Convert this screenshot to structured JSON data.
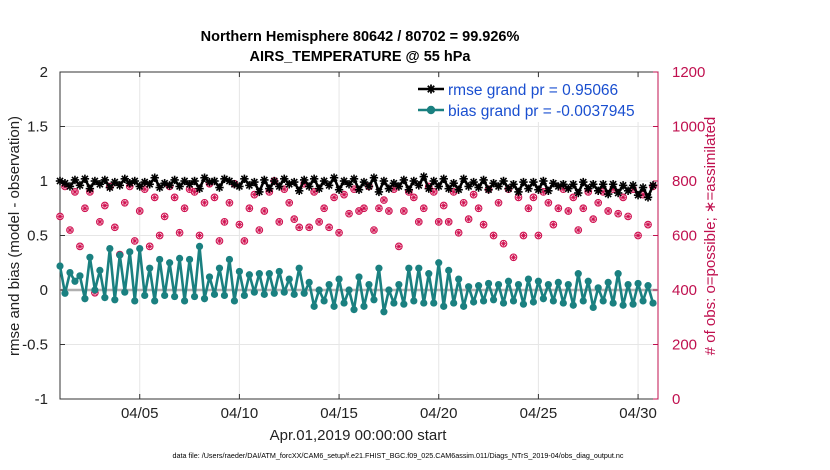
{
  "chart_data": {
    "type": "line",
    "title": "Northern Hemisphere 80642 / 80702 = 99.926%",
    "subtitle": "AIRS_TEMPERATURE @ 55 hPa",
    "xlabel": "Apr.01,2019 00:00:00 start",
    "ylabel": "rmse and bias (model - observation)",
    "y2label": "# of obs: o=possible; ∗=assimilated",
    "footer": "data file: /Users/raeder/DAI/ATM_forcXX/CAM6_setup/f.e21.FHIST_BGC.f09_025.CAM6assim.011/Diags_NTrS_2019-04/obs_diag_output.nc",
    "ylim": [
      -1,
      2
    ],
    "y2lim": [
      0,
      1200
    ],
    "xlim": [
      1.0,
      31.0
    ],
    "x_ticks": [
      5,
      10,
      15,
      20,
      25,
      30
    ],
    "x_tick_labels": [
      "04/05",
      "04/10",
      "04/15",
      "04/20",
      "04/25",
      "04/30"
    ],
    "y_ticks": [
      -1,
      -0.5,
      0,
      0.5,
      1,
      1.5,
      2
    ],
    "y_tick_labels": [
      "-1",
      "-0.5",
      "0",
      "0.5",
      "1",
      "1.5",
      "2"
    ],
    "y2_ticks": [
      0,
      200,
      400,
      600,
      800,
      1000,
      1200
    ],
    "y2_tick_labels": [
      "0",
      "200",
      "400",
      "600",
      "800",
      "1000",
      "1200"
    ],
    "grid": true,
    "legend_position": "top-right",
    "series": [
      {
        "name": "rmse",
        "label": "rmse grand pr = 0.95066",
        "color": "#000000",
        "marker": "star",
        "axis": "left",
        "x": [
          1.0,
          1.25,
          1.5,
          1.75,
          2.0,
          2.25,
          2.5,
          2.75,
          3.0,
          3.25,
          3.5,
          3.75,
          4.0,
          4.25,
          4.5,
          4.75,
          5.0,
          5.25,
          5.5,
          5.75,
          6.0,
          6.25,
          6.5,
          6.75,
          7.0,
          7.25,
          7.5,
          7.75,
          8.0,
          8.25,
          8.5,
          8.75,
          9.0,
          9.25,
          9.5,
          9.75,
          10.0,
          10.25,
          10.5,
          10.75,
          11.0,
          11.25,
          11.5,
          11.75,
          12.0,
          12.25,
          12.5,
          12.75,
          13.0,
          13.25,
          13.5,
          13.75,
          14.0,
          14.25,
          14.5,
          14.75,
          15.0,
          15.25,
          15.5,
          15.75,
          16.0,
          16.25,
          16.5,
          16.75,
          17.0,
          17.25,
          17.5,
          17.75,
          18.0,
          18.25,
          18.5,
          18.75,
          19.0,
          19.25,
          19.5,
          19.75,
          20.0,
          20.25,
          20.5,
          20.75,
          21.0,
          21.25,
          21.5,
          21.75,
          22.0,
          22.25,
          22.5,
          22.75,
          23.0,
          23.25,
          23.5,
          23.75,
          24.0,
          24.25,
          24.5,
          24.75,
          25.0,
          25.25,
          25.5,
          25.75,
          26.0,
          26.25,
          26.5,
          26.75,
          27.0,
          27.25,
          27.5,
          27.75,
          28.0,
          28.25,
          28.5,
          28.75,
          29.0,
          29.25,
          29.5,
          29.75,
          30.0,
          30.25,
          30.5,
          30.75
        ],
        "values": [
          1.0,
          0.98,
          0.95,
          1.01,
          0.96,
          1.02,
          0.93,
          1.0,
          0.97,
          1.01,
          0.94,
          0.99,
          0.96,
          1.02,
          0.98,
          1.0,
          0.95,
          0.99,
          0.97,
          1.03,
          0.94,
          0.98,
          0.96,
          1.01,
          0.95,
          1.0,
          0.97,
          1.0,
          0.93,
          1.03,
          0.99,
          1.0,
          0.94,
          1.02,
          1.0,
          0.97,
          0.95,
          1.02,
          0.96,
          0.99,
          0.9,
          1.01,
          0.93,
          1.0,
          0.95,
          1.02,
          0.97,
          0.99,
          0.91,
          1.01,
          0.95,
          1.02,
          0.93,
          1.0,
          0.96,
          1.03,
          0.92,
          1.0,
          0.97,
          1.02,
          0.92,
          0.99,
          0.95,
          1.03,
          0.9,
          1.0,
          0.93,
          0.98,
          0.95,
          1.01,
          0.92,
          1.0,
          0.96,
          1.04,
          0.93,
          1.0,
          0.95,
          1.02,
          0.93,
          0.98,
          0.92,
          1.02,
          0.95,
          0.99,
          0.94,
          1.01,
          0.92,
          0.98,
          0.95,
          1.0,
          0.93,
          0.97,
          0.9,
          0.99,
          0.93,
          0.99,
          0.92,
          1.0,
          0.91,
          0.98,
          0.95,
          0.97,
          0.93,
          0.97,
          0.89,
          0.99,
          0.93,
          0.97,
          0.91,
          0.97,
          0.88,
          0.97,
          0.89,
          0.96,
          0.91,
          0.96,
          0.87,
          0.94,
          0.85,
          0.96
        ]
      },
      {
        "name": "bias",
        "label": "bias grand pr = -0.0037945",
        "color": "#1a8080",
        "marker": "circle",
        "axis": "left",
        "x": [
          1.0,
          1.25,
          1.5,
          1.75,
          2.0,
          2.25,
          2.5,
          2.75,
          3.0,
          3.25,
          3.5,
          3.75,
          4.0,
          4.25,
          4.5,
          4.75,
          5.0,
          5.25,
          5.5,
          5.75,
          6.0,
          6.25,
          6.5,
          6.75,
          7.0,
          7.25,
          7.5,
          7.75,
          8.0,
          8.25,
          8.5,
          8.75,
          9.0,
          9.25,
          9.5,
          9.75,
          10.0,
          10.25,
          10.5,
          10.75,
          11.0,
          11.25,
          11.5,
          11.75,
          12.0,
          12.25,
          12.5,
          12.75,
          13.0,
          13.25,
          13.5,
          13.75,
          14.0,
          14.25,
          14.5,
          14.75,
          15.0,
          15.25,
          15.5,
          15.75,
          16.0,
          16.25,
          16.5,
          16.75,
          17.0,
          17.25,
          17.5,
          17.75,
          18.0,
          18.25,
          18.5,
          18.75,
          19.0,
          19.25,
          19.5,
          19.75,
          20.0,
          20.25,
          20.5,
          20.75,
          21.0,
          21.25,
          21.5,
          21.75,
          22.0,
          22.25,
          22.5,
          22.75,
          23.0,
          23.25,
          23.5,
          23.75,
          24.0,
          24.25,
          24.5,
          24.75,
          25.0,
          25.25,
          25.5,
          25.75,
          26.0,
          26.25,
          26.5,
          26.75,
          27.0,
          27.25,
          27.5,
          27.75,
          28.0,
          28.25,
          28.5,
          28.75,
          29.0,
          29.25,
          29.5,
          29.75,
          30.0,
          30.25,
          30.5,
          30.75
        ],
        "values": [
          0.22,
          -0.03,
          0.16,
          0.08,
          0.13,
          -0.08,
          0.3,
          0.0,
          0.18,
          -0.07,
          0.38,
          -0.09,
          0.32,
          -0.02,
          0.35,
          -0.1,
          0.38,
          -0.05,
          0.2,
          -0.1,
          0.28,
          -0.05,
          0.25,
          -0.06,
          0.29,
          -0.1,
          0.28,
          -0.06,
          0.4,
          -0.08,
          0.12,
          -0.04,
          0.2,
          -0.05,
          0.28,
          -0.1,
          0.17,
          -0.05,
          0.14,
          -0.02,
          0.15,
          -0.04,
          0.15,
          -0.03,
          0.17,
          -0.02,
          0.1,
          -0.04,
          0.2,
          -0.03,
          0.07,
          -0.15,
          0.0,
          -0.1,
          0.05,
          -0.15,
          0.1,
          -0.12,
          0.0,
          -0.18,
          0.12,
          -0.15,
          0.05,
          -0.09,
          0.2,
          -0.2,
          0.0,
          -0.12,
          0.05,
          -0.13,
          0.2,
          -0.1,
          0.2,
          -0.12,
          0.15,
          -0.12,
          0.25,
          -0.15,
          0.18,
          -0.12,
          0.1,
          -0.15,
          0.03,
          -0.11,
          0.04,
          -0.1,
          0.06,
          -0.09,
          0.05,
          -0.12,
          0.08,
          -0.1,
          0.05,
          -0.13,
          0.1,
          -0.11,
          0.08,
          -0.08,
          0.05,
          -0.1,
          0.07,
          -0.12,
          0.05,
          -0.14,
          0.15,
          -0.1,
          0.08,
          -0.16,
          0.02,
          -0.1,
          0.07,
          -0.12,
          0.15,
          -0.14,
          0.05,
          -0.13,
          0.06,
          -0.1,
          0.04,
          -0.12
        ]
      },
      {
        "name": "possible",
        "label": "# possible obs",
        "color": "#d01050",
        "marker": "circle-open",
        "axis": "right",
        "x": [
          1.0,
          1.25,
          1.5,
          1.75,
          2.0,
          2.25,
          2.5,
          2.75,
          3.0,
          3.25,
          3.5,
          3.75,
          4.0,
          4.25,
          4.5,
          4.75,
          5.0,
          5.25,
          5.5,
          5.75,
          6.0,
          6.25,
          6.5,
          6.75,
          7.0,
          7.25,
          7.5,
          7.75,
          8.0,
          8.25,
          8.5,
          8.75,
          9.0,
          9.25,
          9.5,
          9.75,
          10.0,
          10.25,
          10.5,
          10.75,
          11.0,
          11.25,
          11.5,
          11.75,
          12.0,
          12.25,
          12.5,
          12.75,
          13.0,
          13.25,
          13.5,
          13.75,
          14.0,
          14.25,
          14.5,
          14.75,
          15.0,
          15.25,
          15.5,
          15.75,
          16.0,
          16.25,
          16.5,
          16.75,
          17.0,
          17.25,
          17.5,
          17.75,
          18.0,
          18.25,
          18.5,
          18.75,
          19.0,
          19.25,
          19.5,
          19.75,
          20.0,
          20.25,
          20.5,
          20.75,
          21.0,
          21.25,
          21.5,
          21.75,
          22.0,
          22.25,
          22.5,
          22.75,
          23.0,
          23.25,
          23.5,
          23.75,
          24.0,
          24.25,
          24.5,
          24.75,
          25.0,
          25.25,
          25.5,
          25.75,
          26.0,
          26.25,
          26.5,
          26.75,
          27.0,
          27.25,
          27.5,
          27.75,
          28.0,
          28.25,
          28.5,
          28.75,
          29.0,
          29.25,
          29.5,
          29.75,
          30.0,
          30.25,
          30.5,
          30.75
        ],
        "values": [
          670,
          780,
          620,
          760,
          560,
          700,
          760,
          390,
          650,
          710,
          780,
          630,
          530,
          720,
          780,
          580,
          690,
          770,
          560,
          740,
          600,
          670,
          780,
          740,
          610,
          700,
          770,
          760,
          600,
          720,
          790,
          740,
          580,
          650,
          720,
          790,
          640,
          580,
          700,
          750,
          620,
          690,
          760,
          800,
          650,
          770,
          720,
          660,
          630,
          790,
          630,
          760,
          650,
          700,
          630,
          740,
          610,
          750,
          680,
          770,
          690,
          700,
          780,
          620,
          700,
          730,
          690,
          770,
          560,
          690,
          760,
          740,
          650,
          700,
          780,
          760,
          650,
          710,
          650,
          760,
          610,
          720,
          660,
          750,
          700,
          640,
          770,
          600,
          720,
          570,
          770,
          520,
          740,
          600,
          700,
          740,
          600,
          760,
          720,
          640,
          700,
          770,
          690,
          740,
          620,
          700,
          760,
          660,
          720,
          760,
          690,
          770,
          680,
          740,
          670,
          770,
          600,
          750,
          640,
          780
        ]
      },
      {
        "name": "assimilated",
        "label": "# assimilated obs",
        "color": "#d01050",
        "marker": "star-small",
        "axis": "right",
        "x": [
          1.0,
          1.25,
          1.5,
          1.75,
          2.0,
          2.25,
          2.5,
          2.75,
          3.0,
          3.25,
          3.5,
          3.75,
          4.0,
          4.25,
          4.5,
          4.75,
          5.0,
          5.25,
          5.5,
          5.75,
          6.0,
          6.25,
          6.5,
          6.75,
          7.0,
          7.25,
          7.5,
          7.75,
          8.0,
          8.25,
          8.5,
          8.75,
          9.0,
          9.25,
          9.5,
          9.75,
          10.0,
          10.25,
          10.5,
          10.75,
          11.0,
          11.25,
          11.5,
          11.75,
          12.0,
          12.25,
          12.5,
          12.75,
          13.0,
          13.25,
          13.5,
          13.75,
          14.0,
          14.25,
          14.5,
          14.75,
          15.0,
          15.25,
          15.5,
          15.75,
          16.0,
          16.25,
          16.5,
          16.75,
          17.0,
          17.25,
          17.5,
          17.75,
          18.0,
          18.25,
          18.5,
          18.75,
          19.0,
          19.25,
          19.5,
          19.75,
          20.0,
          20.25,
          20.5,
          20.75,
          21.0,
          21.25,
          21.5,
          21.75,
          22.0,
          22.25,
          22.5,
          22.75,
          23.0,
          23.25,
          23.5,
          23.75,
          24.0,
          24.25,
          24.5,
          24.75,
          25.0,
          25.25,
          25.5,
          25.75,
          26.0,
          26.25,
          26.5,
          26.75,
          27.0,
          27.25,
          27.5,
          27.75,
          28.0,
          28.25,
          28.5,
          28.75,
          29.0,
          29.25,
          29.5,
          29.75,
          30.0,
          30.25,
          30.5,
          30.75
        ],
        "values": [
          670,
          780,
          620,
          760,
          560,
          700,
          760,
          390,
          650,
          710,
          780,
          630,
          530,
          720,
          780,
          580,
          690,
          770,
          560,
          740,
          600,
          670,
          780,
          740,
          610,
          700,
          770,
          760,
          600,
          720,
          790,
          740,
          580,
          650,
          720,
          790,
          640,
          580,
          700,
          750,
          620,
          690,
          760,
          800,
          650,
          770,
          720,
          660,
          630,
          790,
          630,
          760,
          650,
          700,
          630,
          740,
          610,
          750,
          680,
          770,
          690,
          700,
          780,
          620,
          700,
          730,
          690,
          770,
          560,
          690,
          760,
          740,
          650,
          700,
          780,
          760,
          650,
          710,
          650,
          760,
          610,
          720,
          660,
          750,
          700,
          640,
          770,
          600,
          720,
          570,
          770,
          520,
          740,
          600,
          700,
          740,
          600,
          760,
          720,
          640,
          700,
          770,
          690,
          740,
          620,
          700,
          760,
          660,
          720,
          760,
          690,
          770,
          680,
          740,
          670,
          770,
          600,
          750,
          640,
          780
        ]
      }
    ]
  }
}
